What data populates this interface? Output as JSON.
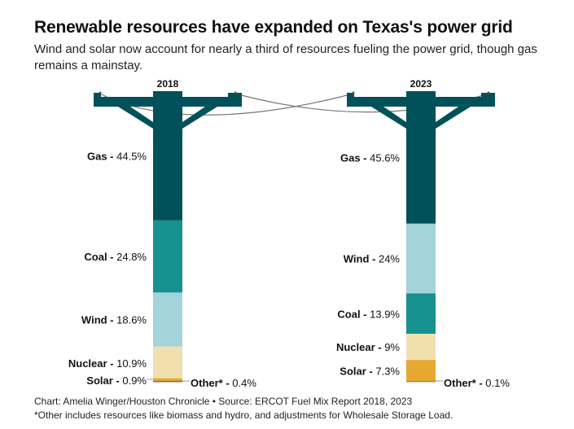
{
  "title": "Renewable resources have expanded on Texas's power grid",
  "subtitle": "Wind and solar now account for nearly a third of resources fueling the power grid, though gas remains a mainstay.",
  "credit": "Chart: Amelia Winger/Houston Chronicle • Source: ERCOT Fuel Mix Report 2018, 2023",
  "note": "*Other includes resources like biomass and hydro, and adjustments for Wholesale Storage Load.",
  "chart_data": {
    "type": "bar",
    "stacked": true,
    "unit": "%",
    "colors": {
      "Gas": "#02505a",
      "Coal": "#17918f",
      "Wind": "#a3d3db",
      "Nuclear": "#f1dfae",
      "Solar": "#e6a831",
      "Other*": "#8a5a5a"
    },
    "columns": [
      {
        "year": "2018",
        "segments": [
          {
            "name": "Gas",
            "value": 44.5
          },
          {
            "name": "Coal",
            "value": 24.8
          },
          {
            "name": "Wind",
            "value": 18.6
          },
          {
            "name": "Nuclear",
            "value": 10.9
          },
          {
            "name": "Solar",
            "value": 0.9
          },
          {
            "name": "Other*",
            "value": 0.4
          }
        ]
      },
      {
        "year": "2023",
        "segments": [
          {
            "name": "Gas",
            "value": 45.6
          },
          {
            "name": "Wind",
            "value": 24
          },
          {
            "name": "Coal",
            "value": 13.9
          },
          {
            "name": "Nuclear",
            "value": 9
          },
          {
            "name": "Solar",
            "value": 7.3
          },
          {
            "name": "Other*",
            "value": 0.1
          }
        ]
      }
    ]
  }
}
